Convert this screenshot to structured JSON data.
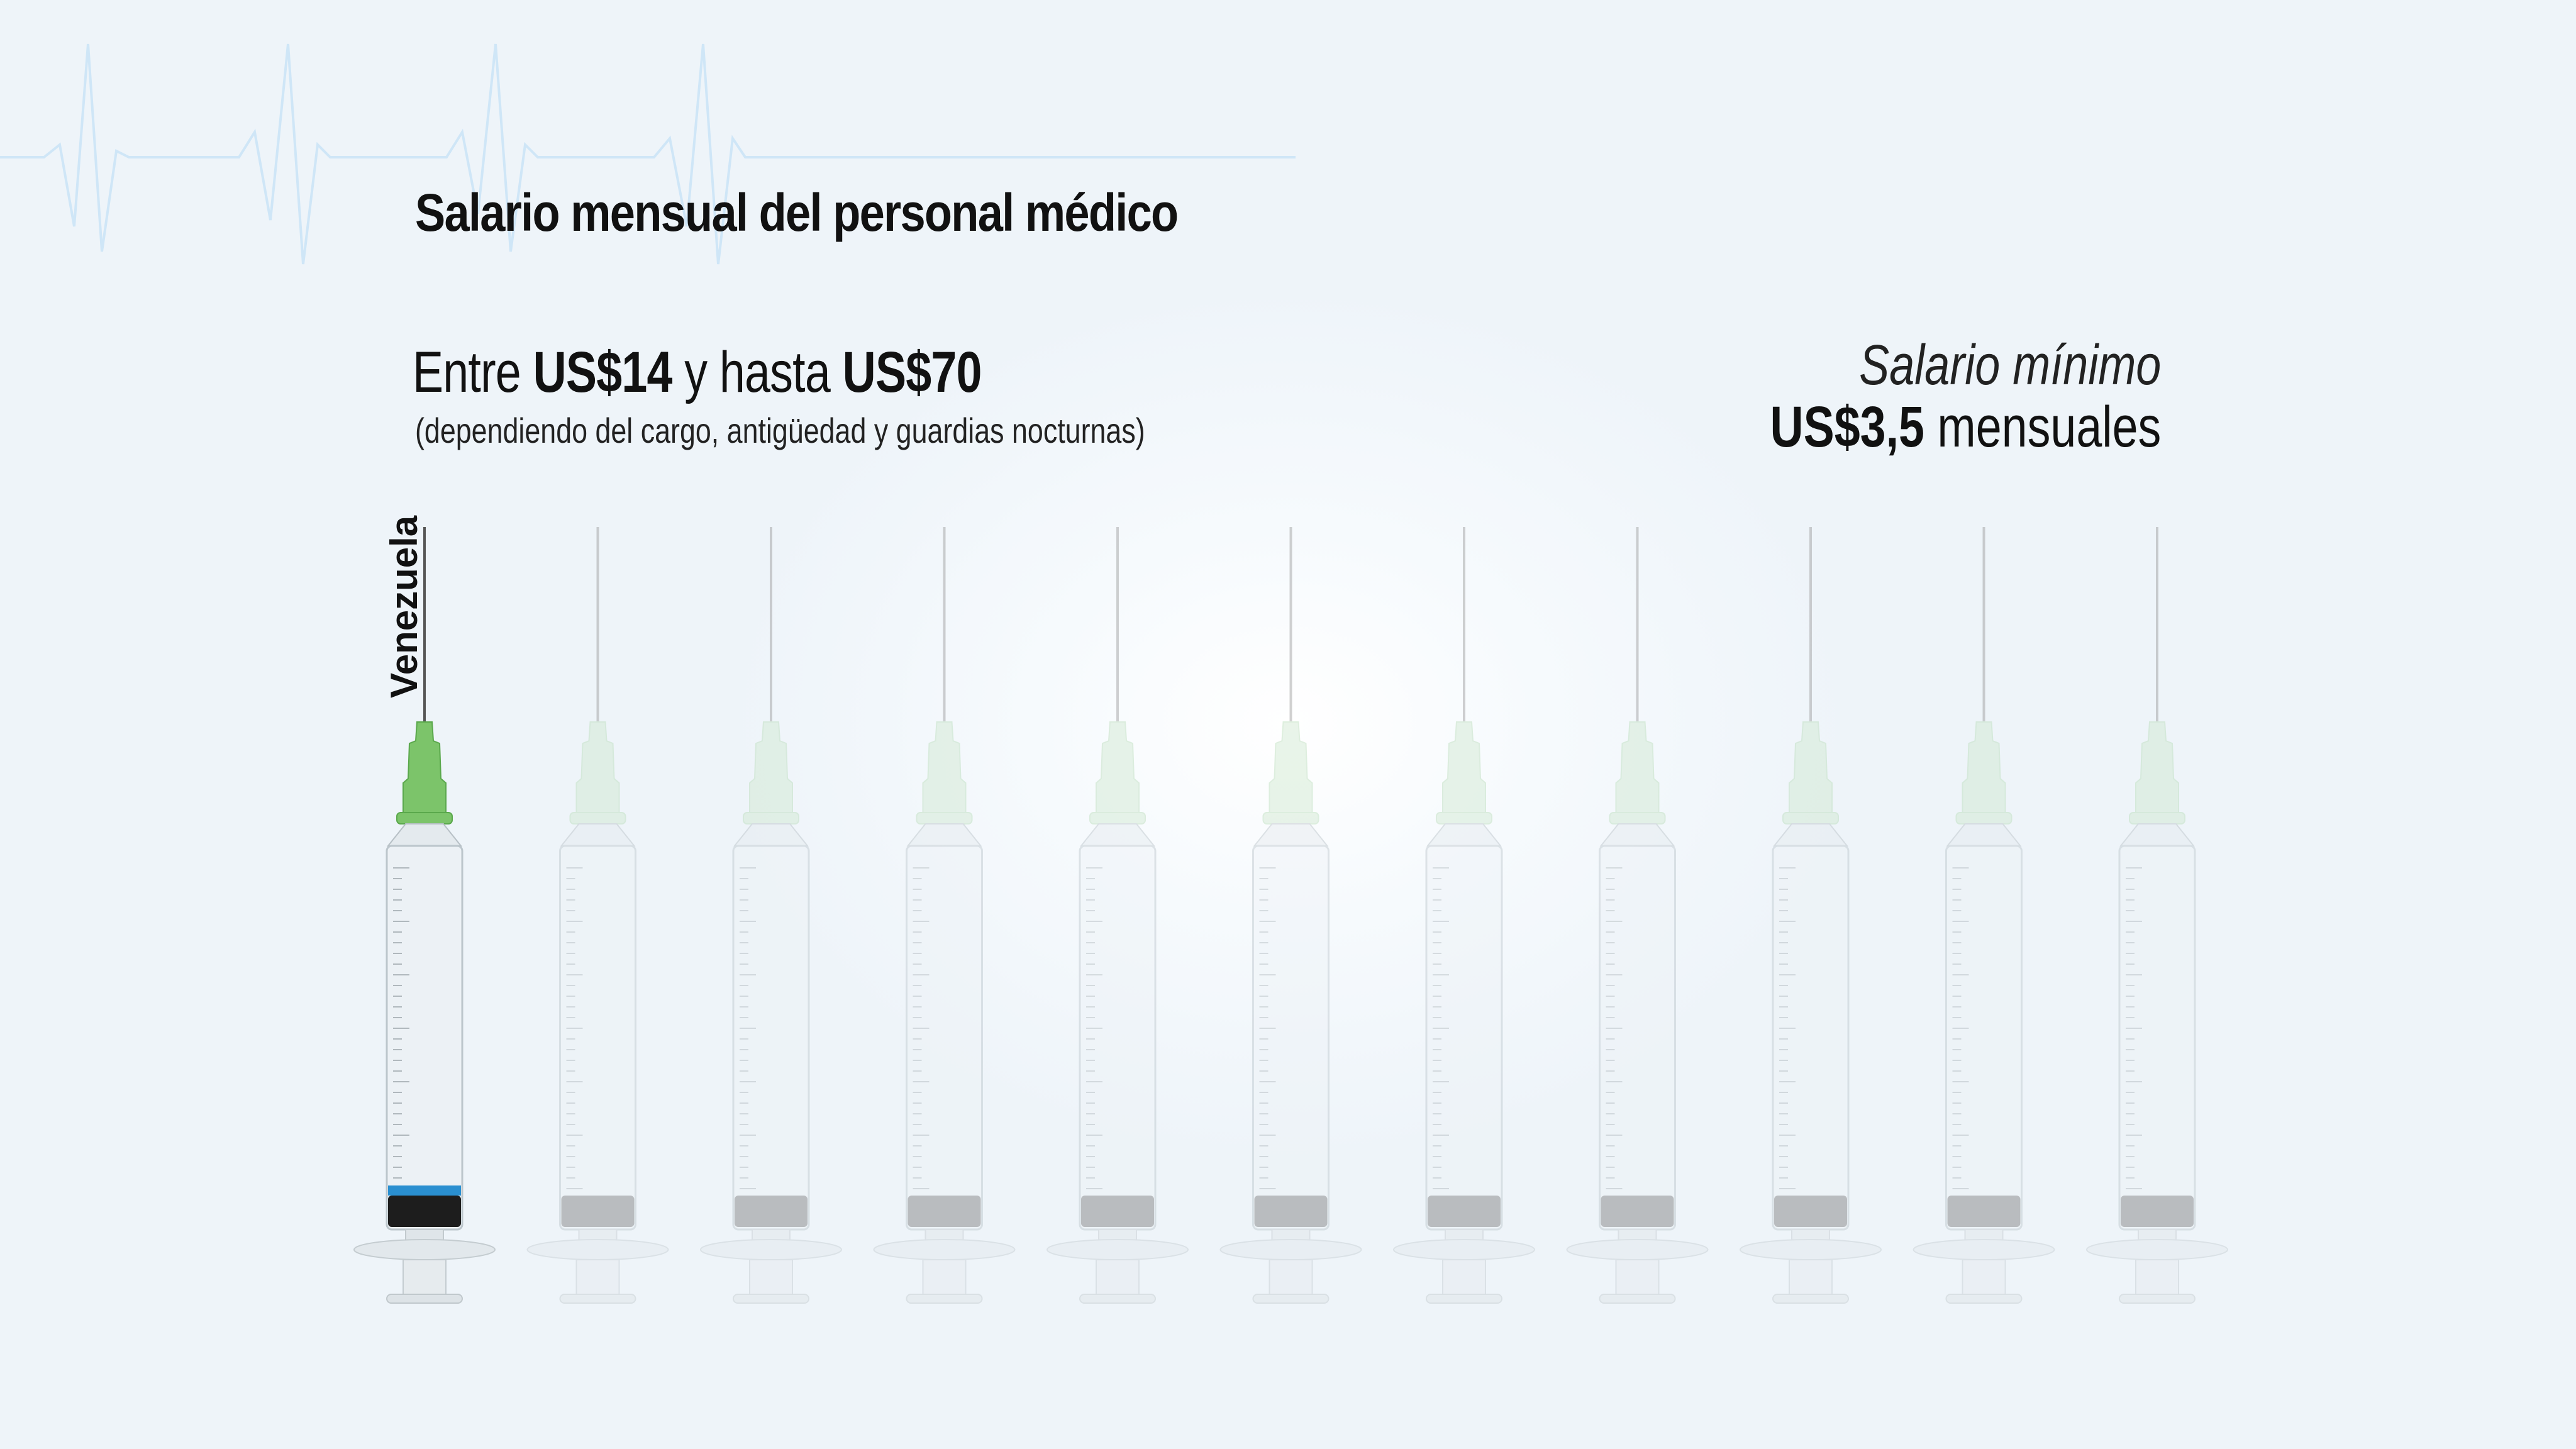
{
  "title": "Salario mensual del personal médico",
  "range": {
    "prefix": "Entre ",
    "low": "US$14",
    "middle": " y hasta ",
    "high": "US$70",
    "note": "(dependiendo del cargo, antigüedad y guardias nocturnas)"
  },
  "minimum_wage": {
    "label": "Salario mínimo",
    "value": "US$3,5",
    "suffix": " mensuales"
  },
  "colors": {
    "highlight_hub": "#7cc46a",
    "faded_hub": "#cfe8cf",
    "stopper_ring": "#2a8fd0",
    "ekg_line": "#cfe6f7"
  },
  "chart_data": {
    "type": "pictogram",
    "icon": "syringe-icon",
    "icon_count": 11,
    "highlighted_count": 1,
    "categories": [
      "Venezuela"
    ]
  }
}
